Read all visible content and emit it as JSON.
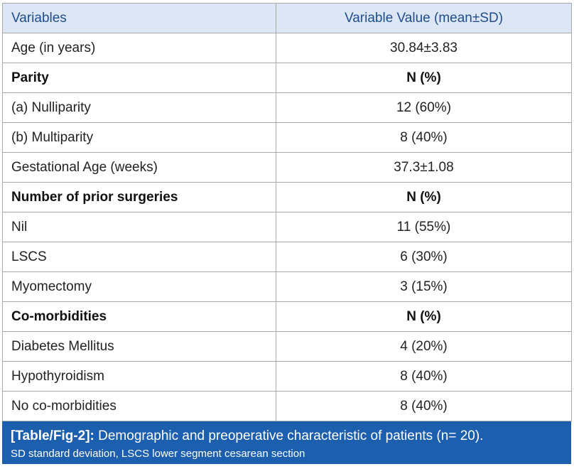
{
  "header": {
    "col1": "Variables",
    "col2": "Variable Value (mean±SD)"
  },
  "rows": [
    {
      "label": "Age (in years)",
      "value": "30.84±3.83",
      "section": false
    },
    {
      "label": "Parity",
      "value": "N (%)",
      "section": true
    },
    {
      "label": "(a) Nulliparity",
      "value": "12 (60%)",
      "section": false
    },
    {
      "label": "(b) Multiparity",
      "value": "8 (40%)",
      "section": false
    },
    {
      "label": "Gestational Age (weeks)",
      "value": "37.3±1.08",
      "section": false
    },
    {
      "label": "Number of prior surgeries",
      "value": "N (%)",
      "section": true
    },
    {
      "label": "Nil",
      "value": "11 (55%)",
      "section": false
    },
    {
      "label": "LSCS",
      "value": "6 (30%)",
      "section": false
    },
    {
      "label": "Myomectomy",
      "value": "3 (15%)",
      "section": false
    },
    {
      "label": "Co-morbidities",
      "value": "N (%)",
      "section": true
    },
    {
      "label": "Diabetes Mellitus",
      "value": "4 (20%)",
      "section": false
    },
    {
      "label": "Hypothyroidism",
      "value": "8 (40%)",
      "section": false
    },
    {
      "label": "No co-morbidities",
      "value": "8 (40%)",
      "section": false
    }
  ],
  "caption": {
    "label": "[Table/Fig-2]:",
    "text": "Demographic and preoperative characteristic of patients (n= 20).",
    "note": "SD standard deviation, LSCS lower segment cesarean section"
  },
  "colors": {
    "header_bg": "#dce6f4",
    "header_text": "#1f4e8c",
    "caption_bg": "#1b5fae"
  }
}
